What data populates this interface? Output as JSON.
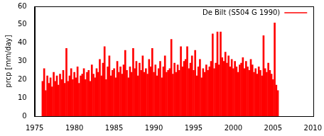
{
  "chart_data": {
    "type": "bar",
    "ylabel": "prcp [mm/day]",
    "x": [
      1976,
      1976.2,
      1976.4,
      1976.6,
      1976.8,
      1977,
      1977.2,
      1977.4,
      1977.6,
      1977.8,
      1978,
      1978.2,
      1978.4,
      1978.6,
      1978.8,
      1979,
      1979.2,
      1979.4,
      1979.6,
      1979.8,
      1980,
      1980.2,
      1980.4,
      1980.6,
      1980.8,
      1981,
      1981.2,
      1981.4,
      1981.6,
      1981.8,
      1982,
      1982.2,
      1982.4,
      1982.6,
      1982.8,
      1983,
      1983.2,
      1983.4,
      1983.6,
      1983.8,
      1984,
      1984.2,
      1984.4,
      1984.6,
      1984.8,
      1985,
      1985.2,
      1985.4,
      1985.6,
      1985.8,
      1986,
      1986.2,
      1986.4,
      1986.6,
      1986.8,
      1987,
      1987.2,
      1987.4,
      1987.6,
      1987.8,
      1988,
      1988.2,
      1988.4,
      1988.6,
      1988.8,
      1989,
      1989.2,
      1989.4,
      1989.6,
      1989.8,
      1990,
      1990.2,
      1990.4,
      1990.6,
      1990.8,
      1991,
      1991.2,
      1991.4,
      1991.6,
      1991.8,
      1992,
      1992.2,
      1992.4,
      1992.6,
      1992.8,
      1993,
      1993.2,
      1993.4,
      1993.6,
      1993.8,
      1994,
      1994.2,
      1994.4,
      1994.6,
      1994.8,
      1995,
      1995.2,
      1995.4,
      1995.6,
      1995.8,
      1996,
      1996.2,
      1996.4,
      1996.6,
      1996.8,
      1997,
      1997.2,
      1997.4,
      1997.6,
      1997.8,
      1998,
      1998.2,
      1998.4,
      1998.6,
      1998.8,
      1999,
      1999.2,
      1999.4,
      1999.6,
      1999.8,
      2000,
      2000.2,
      2000.4,
      2000.6,
      2000.8,
      2001,
      2001.2,
      2001.4,
      2001.6,
      2001.8,
      2002,
      2002.2,
      2002.4,
      2002.6,
      2002.8,
      2003,
      2003.2,
      2003.4,
      2003.6,
      2003.8,
      2004,
      2004.2,
      2004.4,
      2004.6,
      2004.8,
      2005,
      2005.2,
      2005.4,
      2005.6
    ],
    "series": [
      {
        "name": "De Bilt (S504 G 1990)",
        "color": "#ff0000",
        "values": [
          19,
          26,
          14,
          22,
          18,
          21,
          16,
          24,
          19,
          22,
          17,
          23,
          20,
          25,
          18,
          37,
          19,
          22,
          26,
          20,
          24,
          21,
          27,
          18,
          22,
          23,
          26,
          20,
          24,
          25,
          19,
          28,
          23,
          21,
          26,
          24,
          31,
          22,
          29,
          38,
          20,
          27,
          33,
          22,
          25,
          26,
          21,
          30,
          24,
          27,
          23,
          28,
          36,
          25,
          21,
          27,
          24,
          37,
          26,
          30,
          22,
          29,
          25,
          33,
          24,
          26,
          23,
          31,
          27,
          37,
          24,
          28,
          22,
          26,
          30,
          21,
          27,
          33,
          24,
          25,
          26,
          42,
          23,
          29,
          24,
          28,
          25,
          38,
          27,
          30,
          31,
          38,
          26,
          29,
          33,
          25,
          36,
          22,
          27,
          31,
          21,
          26,
          24,
          28,
          25,
          27,
          30,
          45,
          26,
          29,
          46,
          28,
          46,
          32,
          30,
          35,
          29,
          33,
          27,
          31,
          26,
          30,
          27,
          24,
          28,
          29,
          32,
          26,
          30,
          27,
          25,
          31,
          28,
          24,
          26,
          23,
          27,
          25,
          22,
          44,
          26,
          24,
          29,
          25,
          23,
          20,
          51,
          17,
          14
        ]
      }
    ],
    "xlim": [
      1975,
      2010
    ],
    "xticks": [
      1975,
      1980,
      1985,
      1990,
      1995,
      2000,
      2005,
      2010
    ],
    "ylim": [
      0,
      60
    ],
    "yticks": [
      0,
      10,
      20,
      30,
      40,
      50,
      60
    ],
    "grid": false,
    "legend": "upper right"
  }
}
